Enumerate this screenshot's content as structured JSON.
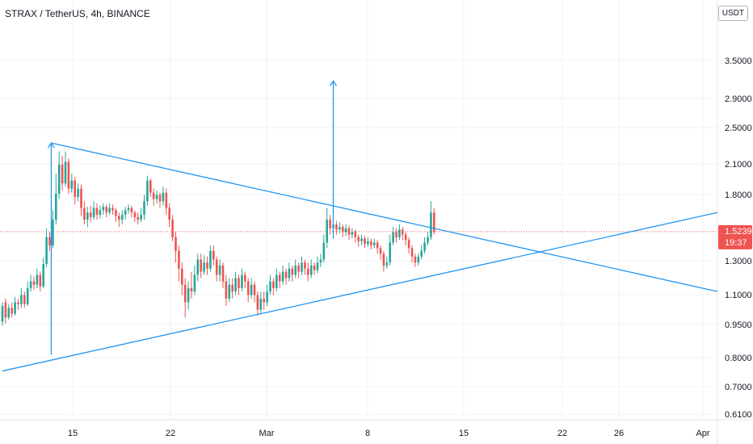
{
  "header": {
    "title": "STRAX / TetherUS, 4h, BINANCE"
  },
  "currency": {
    "label": "USDT"
  },
  "colors": {
    "up": "#26a69a",
    "down": "#ef5350",
    "trendline": "#2196f3",
    "grid": "#f0f3fa",
    "price_line": "#ef5350"
  },
  "price_tag": {
    "price": "1.5239",
    "countdown": "19:37"
  },
  "chart_data": {
    "type": "candlestick",
    "y_scale": "log",
    "ylim": [
      0.58,
      5.0
    ],
    "y_ticks": [
      "3.5000",
      "2.9000",
      "2.5000",
      "2.1000",
      "1.8000",
      "1.3000",
      "1.1000",
      "0.9500",
      "0.8000",
      "0.7000",
      "0.6100"
    ],
    "x_ticks": [
      "15",
      "22",
      "Mar",
      "8",
      "15",
      "22",
      "26",
      "Apr"
    ],
    "current_price": 1.5239,
    "candles": [
      [
        0.96,
        1.04,
        0.94,
        1.06
      ],
      [
        1.06,
        0.98,
        0.95,
        1.08
      ],
      [
        0.98,
        1.03,
        0.97,
        1.05
      ],
      [
        1.03,
        1.0,
        0.98,
        1.06
      ],
      [
        1.0,
        1.06,
        0.99,
        1.09
      ],
      [
        1.06,
        1.05,
        1.02,
        1.08
      ],
      [
        1.05,
        1.1,
        1.03,
        1.14
      ],
      [
        1.1,
        1.05,
        1.03,
        1.12
      ],
      [
        1.05,
        1.14,
        1.04,
        1.18
      ],
      [
        1.14,
        1.18,
        1.12,
        1.22
      ],
      [
        1.18,
        1.16,
        1.13,
        1.21
      ],
      [
        1.16,
        1.22,
        1.14,
        1.26
      ],
      [
        1.22,
        1.15,
        1.12,
        1.24
      ],
      [
        1.15,
        1.29,
        1.14,
        1.33
      ],
      [
        1.29,
        1.48,
        1.27,
        1.55
      ],
      [
        1.48,
        1.42,
        1.38,
        1.52
      ],
      [
        1.42,
        1.62,
        1.4,
        1.7
      ],
      [
        1.62,
        1.85,
        1.58,
        2.05
      ],
      [
        1.85,
        2.15,
        1.8,
        2.3
      ],
      [
        2.15,
        1.95,
        1.88,
        2.25
      ],
      [
        1.95,
        2.18,
        1.92,
        2.3
      ],
      [
        2.18,
        1.9,
        1.85,
        2.22
      ],
      [
        1.9,
        1.98,
        1.86,
        2.05
      ],
      [
        1.98,
        1.82,
        1.75,
        2.02
      ],
      [
        1.82,
        1.9,
        1.78,
        1.95
      ],
      [
        1.9,
        1.72,
        1.65,
        1.94
      ],
      [
        1.72,
        1.62,
        1.58,
        1.78
      ],
      [
        1.62,
        1.68,
        1.56,
        1.73
      ],
      [
        1.68,
        1.64,
        1.6,
        1.74
      ],
      [
        1.64,
        1.72,
        1.62,
        1.78
      ],
      [
        1.72,
        1.66,
        1.62,
        1.76
      ],
      [
        1.66,
        1.7,
        1.63,
        1.74
      ],
      [
        1.7,
        1.73,
        1.66,
        1.76
      ],
      [
        1.73,
        1.68,
        1.64,
        1.75
      ],
      [
        1.68,
        1.72,
        1.66,
        1.76
      ],
      [
        1.72,
        1.7,
        1.66,
        1.75
      ],
      [
        1.7,
        1.65,
        1.6,
        1.72
      ],
      [
        1.65,
        1.62,
        1.56,
        1.68
      ],
      [
        1.62,
        1.66,
        1.58,
        1.7
      ],
      [
        1.66,
        1.7,
        1.62,
        1.73
      ],
      [
        1.7,
        1.72,
        1.67,
        1.75
      ],
      [
        1.72,
        1.68,
        1.64,
        1.74
      ],
      [
        1.68,
        1.64,
        1.6,
        1.7
      ],
      [
        1.64,
        1.62,
        1.58,
        1.68
      ],
      [
        1.62,
        1.66,
        1.6,
        1.72
      ],
      [
        1.66,
        1.78,
        1.62,
        1.84
      ],
      [
        1.78,
        1.98,
        1.74,
        2.03
      ],
      [
        1.98,
        1.86,
        1.82,
        2.0
      ],
      [
        1.86,
        1.8,
        1.74,
        1.9
      ],
      [
        1.8,
        1.84,
        1.76,
        1.88
      ],
      [
        1.84,
        1.78,
        1.72,
        1.86
      ],
      [
        1.78,
        1.86,
        1.74,
        1.92
      ],
      [
        1.86,
        1.72,
        1.66,
        1.9
      ],
      [
        1.72,
        1.62,
        1.56,
        1.76
      ],
      [
        1.62,
        1.48,
        1.45,
        1.66
      ],
      [
        1.48,
        1.38,
        1.3,
        1.52
      ],
      [
        1.38,
        1.26,
        1.18,
        1.42
      ],
      [
        1.26,
        1.16,
        1.1,
        1.3
      ],
      [
        1.16,
        1.06,
        0.98,
        1.2
      ],
      [
        1.06,
        1.14,
        1.02,
        1.18
      ],
      [
        1.14,
        1.12,
        1.08,
        1.24
      ],
      [
        1.12,
        1.22,
        1.1,
        1.28
      ],
      [
        1.22,
        1.32,
        1.18,
        1.36
      ],
      [
        1.32,
        1.24,
        1.2,
        1.36
      ],
      [
        1.24,
        1.3,
        1.22,
        1.35
      ],
      [
        1.3,
        1.26,
        1.22,
        1.34
      ],
      [
        1.26,
        1.38,
        1.24,
        1.42
      ],
      [
        1.38,
        1.32,
        1.28,
        1.42
      ],
      [
        1.32,
        1.22,
        1.18,
        1.34
      ],
      [
        1.22,
        1.28,
        1.18,
        1.32
      ],
      [
        1.28,
        1.18,
        1.14,
        1.3
      ],
      [
        1.18,
        1.08,
        1.04,
        1.22
      ],
      [
        1.08,
        1.16,
        1.06,
        1.2
      ],
      [
        1.16,
        1.12,
        1.08,
        1.2
      ],
      [
        1.12,
        1.2,
        1.1,
        1.24
      ],
      [
        1.2,
        1.14,
        1.1,
        1.22
      ],
      [
        1.14,
        1.22,
        1.12,
        1.26
      ],
      [
        1.22,
        1.18,
        1.14,
        1.24
      ],
      [
        1.18,
        1.1,
        1.06,
        1.2
      ],
      [
        1.1,
        1.16,
        1.08,
        1.2
      ],
      [
        1.16,
        1.1,
        1.06,
        1.18
      ],
      [
        1.1,
        1.02,
        0.99,
        1.12
      ],
      [
        1.02,
        1.08,
        1.0,
        1.12
      ],
      [
        1.08,
        1.06,
        1.02,
        1.12
      ],
      [
        1.06,
        1.12,
        1.04,
        1.16
      ],
      [
        1.12,
        1.18,
        1.1,
        1.22
      ],
      [
        1.18,
        1.14,
        1.1,
        1.2
      ],
      [
        1.14,
        1.22,
        1.12,
        1.26
      ],
      [
        1.22,
        1.18,
        1.14,
        1.24
      ],
      [
        1.18,
        1.24,
        1.16,
        1.28
      ],
      [
        1.24,
        1.2,
        1.16,
        1.26
      ],
      [
        1.2,
        1.26,
        1.18,
        1.3
      ],
      [
        1.26,
        1.22,
        1.18,
        1.28
      ],
      [
        1.22,
        1.28,
        1.2,
        1.32
      ],
      [
        1.28,
        1.24,
        1.2,
        1.3
      ],
      [
        1.24,
        1.3,
        1.22,
        1.34
      ],
      [
        1.3,
        1.26,
        1.22,
        1.32
      ],
      [
        1.26,
        1.22,
        1.18,
        1.3
      ],
      [
        1.22,
        1.28,
        1.2,
        1.32
      ],
      [
        1.28,
        1.25,
        1.22,
        1.3
      ],
      [
        1.25,
        1.3,
        1.23,
        1.34
      ],
      [
        1.3,
        1.32,
        1.27,
        1.36
      ],
      [
        1.32,
        1.44,
        1.3,
        1.5
      ],
      [
        1.44,
        1.62,
        1.4,
        1.72
      ],
      [
        1.62,
        1.55,
        1.5,
        1.66
      ],
      [
        1.55,
        1.58,
        1.52,
        1.62
      ],
      [
        1.58,
        1.54,
        1.5,
        1.61
      ],
      [
        1.54,
        1.56,
        1.51,
        1.6
      ],
      [
        1.56,
        1.52,
        1.48,
        1.58
      ],
      [
        1.52,
        1.55,
        1.49,
        1.58
      ],
      [
        1.55,
        1.5,
        1.46,
        1.57
      ],
      [
        1.5,
        1.52,
        1.47,
        1.55
      ],
      [
        1.52,
        1.48,
        1.44,
        1.54
      ],
      [
        1.48,
        1.45,
        1.41,
        1.5
      ],
      [
        1.45,
        1.47,
        1.42,
        1.5
      ],
      [
        1.47,
        1.43,
        1.4,
        1.49
      ],
      [
        1.43,
        1.45,
        1.41,
        1.48
      ],
      [
        1.45,
        1.42,
        1.39,
        1.47
      ],
      [
        1.42,
        1.44,
        1.4,
        1.47
      ],
      [
        1.44,
        1.4,
        1.36,
        1.46
      ],
      [
        1.4,
        1.36,
        1.32,
        1.42
      ],
      [
        1.36,
        1.28,
        1.24,
        1.38
      ],
      [
        1.28,
        1.3,
        1.26,
        1.34
      ],
      [
        1.3,
        1.44,
        1.28,
        1.5
      ],
      [
        1.44,
        1.52,
        1.42,
        1.56
      ],
      [
        1.52,
        1.48,
        1.44,
        1.55
      ],
      [
        1.48,
        1.54,
        1.46,
        1.58
      ],
      [
        1.54,
        1.5,
        1.46,
        1.56
      ],
      [
        1.5,
        1.46,
        1.42,
        1.52
      ],
      [
        1.46,
        1.4,
        1.36,
        1.48
      ],
      [
        1.4,
        1.34,
        1.3,
        1.42
      ],
      [
        1.34,
        1.3,
        1.27,
        1.36
      ],
      [
        1.3,
        1.34,
        1.28,
        1.36
      ],
      [
        1.34,
        1.38,
        1.32,
        1.42
      ],
      [
        1.38,
        1.44,
        1.36,
        1.48
      ],
      [
        1.44,
        1.48,
        1.42,
        1.52
      ],
      [
        1.48,
        1.68,
        1.46,
        1.78
      ],
      [
        1.68,
        1.52,
        1.5,
        1.72
      ]
    ],
    "x_range": [
      0,
      156
    ],
    "drawings": [
      {
        "kind": "line",
        "label": "upper-trendline",
        "from": [
          15.5,
          2.4
        ],
        "to": [
          156,
          1.12
        ]
      },
      {
        "kind": "line",
        "label": "lower-trendline",
        "from": [
          0,
          0.745
        ],
        "to": [
          156,
          1.68
        ]
      },
      {
        "kind": "arrow",
        "label": "measure-arrow-left",
        "from": [
          15.5,
          0.81
        ],
        "to": [
          15.5,
          2.4
        ]
      },
      {
        "kind": "arrow",
        "label": "target-arrow-right",
        "from": [
          105,
          1.47
        ],
        "to": [
          105,
          3.3
        ]
      }
    ]
  }
}
